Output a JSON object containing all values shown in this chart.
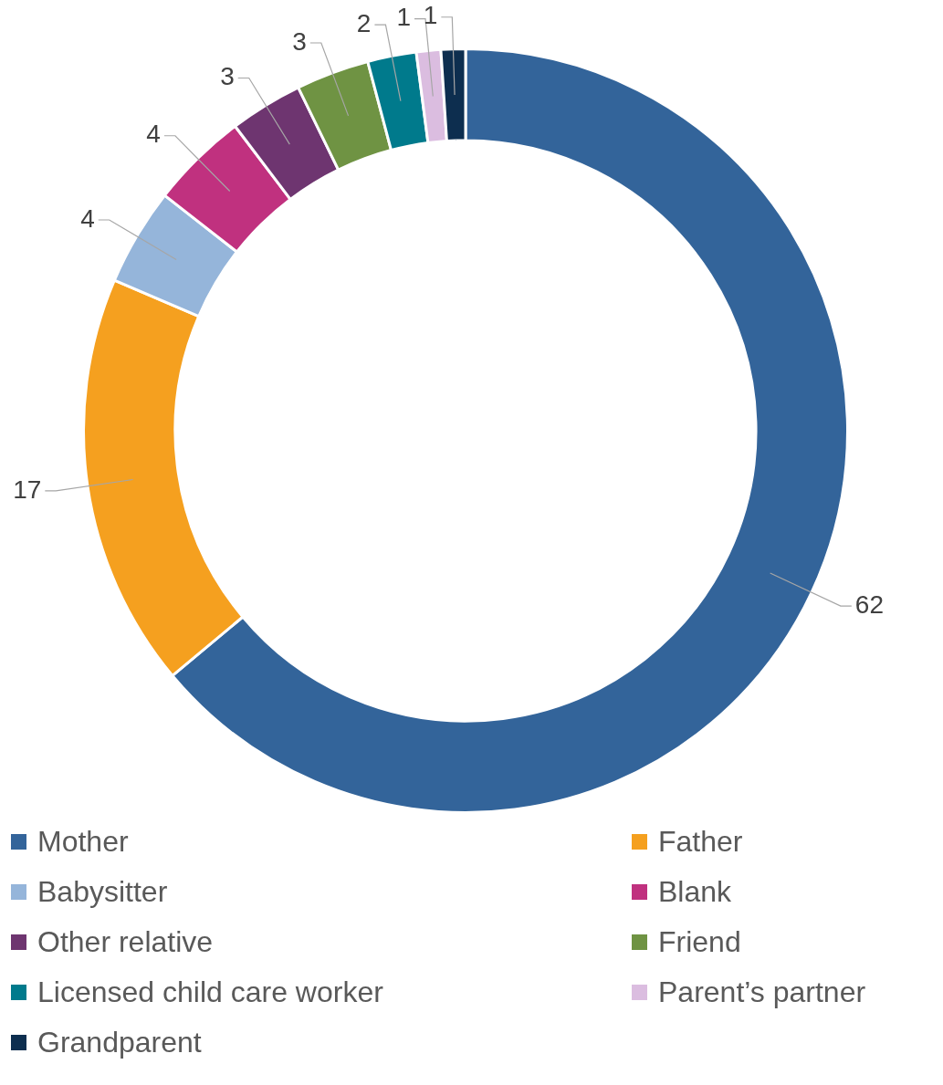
{
  "chart_data": {
    "type": "donut",
    "categories": [
      "Mother",
      "Father",
      "Babysitter",
      "Blank",
      "Other relative",
      "Friend",
      "Licensed child care worker",
      "Parent’s partner",
      "Grandparent"
    ],
    "values": [
      62,
      17,
      4,
      4,
      3,
      3,
      2,
      1,
      1
    ],
    "colors": [
      "#33649a",
      "#f5a01f",
      "#95b5da",
      "#c0317f",
      "#6e3570",
      "#6f9343",
      "#007a8c",
      "#dbbde0",
      "#0d2e4f"
    ],
    "data_labels": true,
    "legend": "bottom"
  }
}
